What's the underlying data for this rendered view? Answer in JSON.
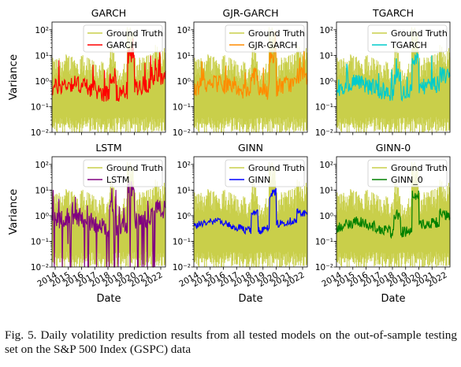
{
  "figure": {
    "ylabel": "Variance",
    "xlabel": "Date",
    "ground_truth_label": "Ground Truth",
    "ground_truth_color": "#c9cf4a",
    "y_tick_labels": [
      "10⁻²",
      "10⁻¹",
      "10⁰",
      "10¹",
      "10²"
    ],
    "x_tick_labels": [
      "2015",
      "2016",
      "2017",
      "2018",
      "2019",
      "2020",
      "2021",
      "2022"
    ],
    "x_tick_prefix": "2014"
  },
  "caption": "Fig. 5.  Daily volatility prediction results from all tested models on the out-of-sample testing set on the S&P 500 Index (GSPC) data",
  "chart_data": [
    {
      "type": "line",
      "title": "GARCH",
      "series": [
        {
          "name": "Ground Truth",
          "color": "#c9cf4a"
        },
        {
          "name": "GARCH",
          "color": "#ff0000"
        }
      ],
      "ylim": [
        0.01,
        200
      ],
      "yscale": "log",
      "xlim": [
        "2014",
        "2023"
      ],
      "legend": "top-right"
    },
    {
      "type": "line",
      "title": "GJR-GARCH",
      "series": [
        {
          "name": "Ground Truth",
          "color": "#c9cf4a"
        },
        {
          "name": "GJR-GARCH",
          "color": "#ff8c00"
        }
      ],
      "ylim": [
        0.01,
        200
      ],
      "yscale": "log",
      "xlim": [
        "2014",
        "2023"
      ],
      "legend": "top-right"
    },
    {
      "type": "line",
      "title": "TGARCH",
      "series": [
        {
          "name": "Ground Truth",
          "color": "#c9cf4a"
        },
        {
          "name": "TGARCH",
          "color": "#00cccc"
        }
      ],
      "ylim": [
        0.01,
        200
      ],
      "yscale": "log",
      "xlim": [
        "2014",
        "2023"
      ],
      "legend": "top-right"
    },
    {
      "type": "line",
      "title": "LSTM",
      "series": [
        {
          "name": "Ground Truth",
          "color": "#c9cf4a"
        },
        {
          "name": "LSTM",
          "color": "#800080"
        }
      ],
      "ylim": [
        0.01,
        200
      ],
      "yscale": "log",
      "xlim": [
        "2014",
        "2023"
      ],
      "legend": "top-right"
    },
    {
      "type": "line",
      "title": "GINN",
      "series": [
        {
          "name": "Ground Truth",
          "color": "#c9cf4a"
        },
        {
          "name": "GINN",
          "color": "#0000ff"
        }
      ],
      "ylim": [
        0.01,
        200
      ],
      "yscale": "log",
      "xlim": [
        "2014",
        "2023"
      ],
      "legend": "top-right"
    },
    {
      "type": "line",
      "title": "GINN-0",
      "series": [
        {
          "name": "Ground Truth",
          "color": "#c9cf4a"
        },
        {
          "name": "GINN_0",
          "color": "#008000"
        }
      ],
      "ylim": [
        0.01,
        200
      ],
      "yscale": "log",
      "xlim": [
        "2014",
        "2023"
      ],
      "legend": "top-right"
    }
  ]
}
